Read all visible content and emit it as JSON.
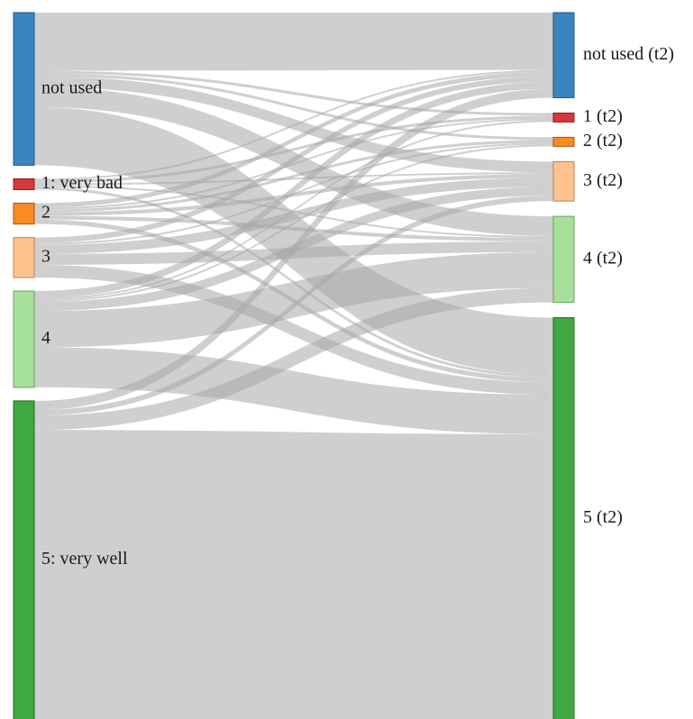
{
  "chart_data": {
    "type": "sankey",
    "title": "",
    "colors": {
      "link": "#a8a8a8",
      "not_used": "#3a84c0",
      "level_1": "#d5393c",
      "level_2": "#fa8a22",
      "level_3": "#fdc28d",
      "level_4": "#a6e09a",
      "level_5": "#3fa83f"
    },
    "source_nodes": [
      {
        "id": "s_nu",
        "label": "not used",
        "color": "#3a84c0",
        "stroke": "#23567f"
      },
      {
        "id": "s_1",
        "label": "1: very bad",
        "color": "#d5393c",
        "stroke": "#8a2022"
      },
      {
        "id": "s_2",
        "label": "2",
        "color": "#fa8a22",
        "stroke": "#a85710"
      },
      {
        "id": "s_3",
        "label": "3",
        "color": "#fdc28d",
        "stroke": "#b88155"
      },
      {
        "id": "s_4",
        "label": "4",
        "color": "#a6e09a",
        "stroke": "#6e9f64"
      },
      {
        "id": "s_5",
        "label": "5: very well",
        "color": "#3fa83f",
        "stroke": "#246d24"
      }
    ],
    "target_nodes": [
      {
        "id": "t_nu",
        "label": "not used (t2)",
        "color": "#3a84c0",
        "stroke": "#23567f"
      },
      {
        "id": "t_1",
        "label": "1 (t2)",
        "color": "#d5393c",
        "stroke": "#8a2022"
      },
      {
        "id": "t_2",
        "label": "2 (t2)",
        "color": "#fa8a22",
        "stroke": "#a85710"
      },
      {
        "id": "t_3",
        "label": "3 (t2)",
        "color": "#fdc28d",
        "stroke": "#b88155"
      },
      {
        "id": "t_4",
        "label": "4 (t2)",
        "color": "#a6e09a",
        "stroke": "#6e9f64"
      },
      {
        "id": "t_5",
        "label": "5 (t2)",
        "color": "#3fa83f",
        "stroke": "#246d24"
      }
    ],
    "links": [
      {
        "source": "s_nu",
        "target": "t_nu",
        "value": 64
      },
      {
        "source": "s_nu",
        "target": "t_1",
        "value": 3
      },
      {
        "source": "s_nu",
        "target": "t_2",
        "value": 3
      },
      {
        "source": "s_nu",
        "target": "t_3",
        "value": 12
      },
      {
        "source": "s_nu",
        "target": "t_4",
        "value": 22
      },
      {
        "source": "s_nu",
        "target": "t_5",
        "value": 64
      },
      {
        "source": "s_1",
        "target": "t_nu",
        "value": 2
      },
      {
        "source": "s_1",
        "target": "t_1",
        "value": 3
      },
      {
        "source": "s_1",
        "target": "t_3",
        "value": 2
      },
      {
        "source": "s_1",
        "target": "t_4",
        "value": 2
      },
      {
        "source": "s_1",
        "target": "t_5",
        "value": 3
      },
      {
        "source": "s_2",
        "target": "t_nu",
        "value": 5
      },
      {
        "source": "s_2",
        "target": "t_1",
        "value": 2
      },
      {
        "source": "s_2",
        "target": "t_2",
        "value": 3
      },
      {
        "source": "s_2",
        "target": "t_3",
        "value": 4
      },
      {
        "source": "s_2",
        "target": "t_4",
        "value": 4
      },
      {
        "source": "s_2",
        "target": "t_5",
        "value": 5
      },
      {
        "source": "s_3",
        "target": "t_nu",
        "value": 6
      },
      {
        "source": "s_3",
        "target": "t_2",
        "value": 2
      },
      {
        "source": "s_3",
        "target": "t_3",
        "value": 10
      },
      {
        "source": "s_3",
        "target": "t_4",
        "value": 12
      },
      {
        "source": "s_3",
        "target": "t_5",
        "value": 14
      },
      {
        "source": "s_4",
        "target": "t_nu",
        "value": 8
      },
      {
        "source": "s_4",
        "target": "t_1",
        "value": 2
      },
      {
        "source": "s_4",
        "target": "t_2",
        "value": 2
      },
      {
        "source": "s_4",
        "target": "t_3",
        "value": 10
      },
      {
        "source": "s_4",
        "target": "t_4",
        "value": 40
      },
      {
        "source": "s_4",
        "target": "t_5",
        "value": 44
      },
      {
        "source": "s_5",
        "target": "t_nu",
        "value": 10
      },
      {
        "source": "s_5",
        "target": "t_3",
        "value": 6
      },
      {
        "source": "s_5",
        "target": "t_4",
        "value": 16
      },
      {
        "source": "s_5",
        "target": "t_5",
        "value": 340
      }
    ]
  }
}
